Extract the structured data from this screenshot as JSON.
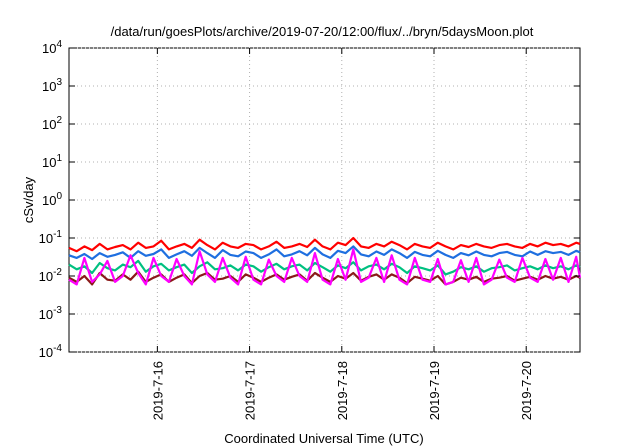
{
  "chart_data": {
    "type": "line",
    "title": "/data/run/goesPlots/archive/2019-07-20/12:00/flux/../bryn/5daysMoon.plot",
    "xlabel": "Coordinated Universal Time (UTC)",
    "ylabel": "cSv/day",
    "yscale": "log",
    "ylim": [
      0.0001,
      10000
    ],
    "xlim": [
      "2019-07-15 01:00",
      "2019-07-20 14:00"
    ],
    "grid": true,
    "x_ticks": [
      {
        "label": "2019-7-16",
        "value": "2019-07-16 00:00"
      },
      {
        "label": "2019-7-17",
        "value": "2019-07-17 00:00"
      },
      {
        "label": "2019-7-18",
        "value": "2019-07-18 00:00"
      },
      {
        "label": "2019-7-19",
        "value": "2019-07-19 00:00"
      },
      {
        "label": "2019-7-20",
        "value": "2019-07-20 00:00"
      }
    ],
    "y_ticks": [
      {
        "base": "10",
        "exp": "4",
        "value": 10000
      },
      {
        "base": "10",
        "exp": "3",
        "value": 1000
      },
      {
        "base": "10",
        "exp": "2",
        "value": 100
      },
      {
        "base": "10",
        "exp": "1",
        "value": 10
      },
      {
        "base": "10",
        "exp": "0",
        "value": 1
      },
      {
        "base": "10",
        "exp": "-1",
        "value": 0.1
      },
      {
        "base": "10",
        "exp": "-2",
        "value": 0.01
      },
      {
        "base": "10",
        "exp": "-3",
        "value": 0.001
      },
      {
        "base": "10",
        "exp": "-4",
        "value": 0.0001
      }
    ],
    "x": [
      "2019-07-15 01:00",
      "2019-07-15 03:00",
      "2019-07-15 05:00",
      "2019-07-15 07:00",
      "2019-07-15 09:00",
      "2019-07-15 11:00",
      "2019-07-15 13:00",
      "2019-07-15 15:00",
      "2019-07-15 17:00",
      "2019-07-15 19:00",
      "2019-07-15 21:00",
      "2019-07-15 23:00",
      "2019-07-16 01:00",
      "2019-07-16 03:00",
      "2019-07-16 05:00",
      "2019-07-16 07:00",
      "2019-07-16 09:00",
      "2019-07-16 11:00",
      "2019-07-16 13:00",
      "2019-07-16 15:00",
      "2019-07-16 17:00",
      "2019-07-16 19:00",
      "2019-07-16 21:00",
      "2019-07-16 23:00",
      "2019-07-17 01:00",
      "2019-07-17 03:00",
      "2019-07-17 05:00",
      "2019-07-17 07:00",
      "2019-07-17 09:00",
      "2019-07-17 11:00",
      "2019-07-17 13:00",
      "2019-07-17 15:00",
      "2019-07-17 17:00",
      "2019-07-17 19:00",
      "2019-07-17 21:00",
      "2019-07-17 23:00",
      "2019-07-18 01:00",
      "2019-07-18 03:00",
      "2019-07-18 05:00",
      "2019-07-18 07:00",
      "2019-07-18 09:00",
      "2019-07-18 11:00",
      "2019-07-18 13:00",
      "2019-07-18 15:00",
      "2019-07-18 17:00",
      "2019-07-18 19:00",
      "2019-07-18 21:00",
      "2019-07-18 23:00",
      "2019-07-19 01:00",
      "2019-07-19 03:00",
      "2019-07-19 05:00",
      "2019-07-19 07:00",
      "2019-07-19 09:00",
      "2019-07-19 11:00",
      "2019-07-19 13:00",
      "2019-07-19 15:00",
      "2019-07-19 17:00",
      "2019-07-19 19:00",
      "2019-07-19 21:00",
      "2019-07-19 23:00",
      "2019-07-20 01:00",
      "2019-07-20 03:00",
      "2019-07-20 05:00",
      "2019-07-20 07:00",
      "2019-07-20 09:00",
      "2019-07-20 11:00",
      "2019-07-20 13:00",
      "2019-07-20 14:00"
    ],
    "series": [
      {
        "color": "#ff0000",
        "values": [
          0.055,
          0.045,
          0.06,
          0.048,
          0.07,
          0.05,
          0.058,
          0.065,
          0.05,
          0.075,
          0.055,
          0.06,
          0.085,
          0.05,
          0.06,
          0.07,
          0.055,
          0.09,
          0.065,
          0.05,
          0.075,
          0.06,
          0.055,
          0.07,
          0.065,
          0.05,
          0.06,
          0.08,
          0.055,
          0.06,
          0.07,
          0.058,
          0.09,
          0.06,
          0.05,
          0.075,
          0.065,
          0.1,
          0.06,
          0.055,
          0.07,
          0.06,
          0.08,
          0.065,
          0.05,
          0.07,
          0.06,
          0.055,
          0.075,
          0.06,
          0.05,
          0.065,
          0.058,
          0.07,
          0.06,
          0.055,
          0.065,
          0.07,
          0.06,
          0.055,
          0.07,
          0.06,
          0.075,
          0.065,
          0.07,
          0.06,
          0.075,
          0.07
        ]
      },
      {
        "color": "#1e6fe0",
        "values": [
          0.035,
          0.03,
          0.038,
          0.028,
          0.04,
          0.032,
          0.036,
          0.042,
          0.03,
          0.045,
          0.034,
          0.038,
          0.05,
          0.03,
          0.037,
          0.045,
          0.034,
          0.055,
          0.04,
          0.03,
          0.048,
          0.036,
          0.033,
          0.044,
          0.04,
          0.03,
          0.037,
          0.05,
          0.033,
          0.037,
          0.045,
          0.035,
          0.055,
          0.037,
          0.03,
          0.046,
          0.04,
          0.06,
          0.037,
          0.033,
          0.044,
          0.036,
          0.05,
          0.04,
          0.03,
          0.043,
          0.036,
          0.033,
          0.046,
          0.036,
          0.03,
          0.04,
          0.035,
          0.044,
          0.036,
          0.033,
          0.04,
          0.043,
          0.036,
          0.033,
          0.044,
          0.036,
          0.045,
          0.04,
          0.043,
          0.036,
          0.046,
          0.042
        ]
      },
      {
        "color": "#00c080",
        "values": [
          0.02,
          0.015,
          0.018,
          0.012,
          0.022,
          0.016,
          0.014,
          0.02,
          0.017,
          0.025,
          0.013,
          0.018,
          0.021,
          0.014,
          0.017,
          0.02,
          0.012,
          0.018,
          0.023,
          0.015,
          0.016,
          0.019,
          0.014,
          0.02,
          0.018,
          0.013,
          0.017,
          0.021,
          0.015,
          0.018,
          0.02,
          0.014,
          0.022,
          0.017,
          0.013,
          0.019,
          0.016,
          0.023,
          0.014,
          0.018,
          0.02,
          0.015,
          0.021,
          0.017,
          0.012,
          0.018,
          0.016,
          0.014,
          0.019,
          0.011,
          0.013,
          0.017,
          0.015,
          0.018,
          0.013,
          0.016,
          0.017,
          0.019,
          0.014,
          0.016,
          0.018,
          0.015,
          0.019,
          0.016,
          0.018,
          0.015,
          0.019,
          0.017
        ]
      },
      {
        "color": "#8b1a1a",
        "values": [
          0.009,
          0.007,
          0.01,
          0.006,
          0.012,
          0.008,
          0.0075,
          0.011,
          0.008,
          0.013,
          0.007,
          0.009,
          0.011,
          0.007,
          0.009,
          0.011,
          0.0065,
          0.01,
          0.012,
          0.008,
          0.0085,
          0.01,
          0.007,
          0.011,
          0.009,
          0.007,
          0.009,
          0.011,
          0.008,
          0.0095,
          0.011,
          0.0075,
          0.012,
          0.009,
          0.007,
          0.01,
          0.0085,
          0.012,
          0.0075,
          0.0095,
          0.011,
          0.008,
          0.011,
          0.009,
          0.0065,
          0.0095,
          0.0085,
          0.0075,
          0.01,
          0.006,
          0.007,
          0.009,
          0.008,
          0.0095,
          0.007,
          0.0085,
          0.009,
          0.01,
          0.0075,
          0.0085,
          0.0095,
          0.008,
          0.01,
          0.0085,
          0.0095,
          0.008,
          0.01,
          0.009
        ]
      },
      {
        "color": "#ff00ff",
        "values": [
          0.008,
          0.006,
          0.03,
          0.007,
          0.011,
          0.025,
          0.007,
          0.01,
          0.035,
          0.012,
          0.006,
          0.03,
          0.01,
          0.007,
          0.028,
          0.01,
          0.006,
          0.045,
          0.011,
          0.007,
          0.03,
          0.009,
          0.006,
          0.032,
          0.008,
          0.006,
          0.027,
          0.01,
          0.007,
          0.03,
          0.01,
          0.007,
          0.04,
          0.008,
          0.006,
          0.028,
          0.008,
          0.05,
          0.007,
          0.009,
          0.03,
          0.007,
          0.035,
          0.008,
          0.006,
          0.03,
          0.008,
          0.007,
          0.028,
          0.006,
          0.007,
          0.026,
          0.007,
          0.03,
          0.006,
          0.008,
          0.027,
          0.009,
          0.007,
          0.03,
          0.009,
          0.007,
          0.028,
          0.008,
          0.03,
          0.007,
          0.032,
          0.009
        ]
      }
    ]
  }
}
